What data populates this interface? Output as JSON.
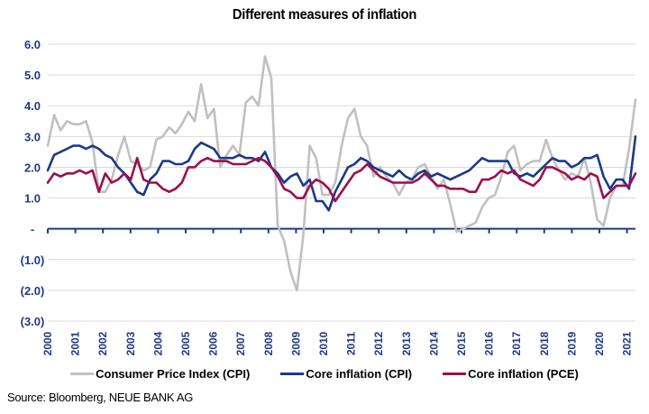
{
  "chart_data": {
    "type": "line",
    "title": "Different measures of inflation",
    "xlabel": "",
    "ylabel": "",
    "ylim": [
      -3.0,
      6.0
    ],
    "xlim": [
      2000,
      2021.25
    ],
    "grid": true,
    "legend_position": "bottom",
    "yticks": [
      {
        "value": 6.0,
        "label": "6.0"
      },
      {
        "value": 5.0,
        "label": "5.0"
      },
      {
        "value": 4.0,
        "label": "4.0"
      },
      {
        "value": 3.0,
        "label": "3.0"
      },
      {
        "value": 2.0,
        "label": "2.0"
      },
      {
        "value": 1.0,
        "label": "1.0"
      },
      {
        "value": 0.0,
        "label": "-"
      },
      {
        "value": -1.0,
        "label": "(1.0)"
      },
      {
        "value": -2.0,
        "label": "(2.0)"
      },
      {
        "value": -3.0,
        "label": "(3.0)"
      }
    ],
    "xticks": [
      "2000",
      "2001",
      "2002",
      "2003",
      "2004",
      "2005",
      "2006",
      "2007",
      "2008",
      "2009",
      "2010",
      "2011",
      "2012",
      "2013",
      "2014",
      "2015",
      "2016",
      "2017",
      "2018",
      "2019",
      "2020",
      "2021"
    ],
    "x_step_years": 0.25,
    "series": [
      {
        "name": "Consumer Price Index (CPI)",
        "color": "#c0c0c0",
        "values": [
          2.7,
          3.7,
          3.2,
          3.5,
          3.4,
          3.4,
          3.5,
          2.8,
          1.2,
          1.2,
          1.6,
          2.4,
          3.0,
          2.2,
          2.1,
          1.9,
          2.0,
          2.9,
          3.0,
          3.3,
          3.1,
          3.4,
          3.8,
          3.5,
          4.7,
          3.6,
          3.9,
          2.0,
          2.4,
          2.7,
          2.4,
          4.1,
          4.3,
          4.0,
          5.6,
          4.9,
          0.1,
          -0.4,
          -1.4,
          -2.0,
          -0.2,
          2.7,
          2.3,
          1.1,
          1.1,
          1.5,
          2.7,
          3.6,
          3.9,
          3.0,
          2.7,
          1.7,
          2.0,
          1.7,
          1.5,
          1.1,
          1.5,
          1.6,
          2.0,
          2.1,
          1.7,
          1.3,
          1.6,
          0.8,
          -0.1,
          0.0,
          0.1,
          0.2,
          0.7,
          1.0,
          1.1,
          1.7,
          2.5,
          2.7,
          1.9,
          2.1,
          2.2,
          2.2,
          2.9,
          2.3,
          1.9,
          1.6,
          1.8,
          1.7,
          2.3,
          1.5,
          0.3,
          0.1,
          1.0,
          1.4,
          1.4,
          2.6,
          4.2
        ]
      },
      {
        "name": "Core inflation (CPI)",
        "color": "#1a3a8a",
        "values": [
          1.9,
          2.4,
          2.5,
          2.6,
          2.7,
          2.7,
          2.6,
          2.7,
          2.6,
          2.4,
          2.3,
          2.0,
          1.8,
          1.5,
          1.2,
          1.1,
          1.6,
          1.8,
          2.2,
          2.2,
          2.1,
          2.1,
          2.2,
          2.6,
          2.8,
          2.7,
          2.6,
          2.3,
          2.3,
          2.3,
          2.4,
          2.3,
          2.3,
          2.2,
          2.5,
          2.0,
          1.8,
          1.5,
          1.7,
          1.8,
          1.4,
          1.6,
          0.9,
          0.9,
          0.6,
          1.2,
          1.6,
          2.0,
          2.1,
          2.3,
          2.2,
          2.0,
          1.9,
          1.8,
          1.7,
          1.9,
          1.7,
          1.6,
          1.8,
          1.9,
          1.7,
          1.8,
          1.7,
          1.6,
          1.7,
          1.8,
          1.9,
          2.1,
          2.3,
          2.2,
          2.2,
          2.2,
          2.2,
          1.8,
          1.7,
          1.8,
          1.7,
          1.9,
          2.1,
          2.3,
          2.2,
          2.2,
          2.0,
          2.1,
          2.3,
          2.3,
          2.4,
          1.7,
          1.3,
          1.6,
          1.6,
          1.3,
          3.0
        ]
      },
      {
        "name": "Core inflation (PCE)",
        "color": "#9c0f4f",
        "values": [
          1.5,
          1.8,
          1.7,
          1.8,
          1.8,
          1.9,
          1.8,
          1.9,
          1.2,
          1.8,
          1.5,
          1.6,
          1.8,
          1.6,
          2.3,
          1.6,
          1.5,
          1.5,
          1.3,
          1.2,
          1.3,
          1.5,
          2.0,
          2.0,
          2.2,
          2.3,
          2.2,
          2.2,
          2.2,
          2.1,
          2.1,
          2.1,
          2.2,
          2.3,
          2.2,
          2.0,
          1.7,
          1.3,
          1.2,
          1.0,
          1.0,
          1.4,
          1.6,
          1.5,
          1.3,
          0.9,
          1.2,
          1.5,
          1.8,
          1.9,
          2.1,
          1.9,
          1.7,
          1.6,
          1.5,
          1.5,
          1.5,
          1.5,
          1.6,
          1.8,
          1.6,
          1.4,
          1.4,
          1.3,
          1.3,
          1.3,
          1.2,
          1.2,
          1.6,
          1.6,
          1.7,
          1.9,
          1.8,
          1.9,
          1.6,
          1.5,
          1.4,
          1.6,
          2.0,
          2.0,
          1.9,
          1.8,
          1.6,
          1.7,
          1.6,
          1.8,
          1.7,
          1.0,
          1.2,
          1.4,
          1.4,
          1.4,
          1.8
        ]
      }
    ]
  },
  "legend": {
    "items": [
      {
        "label": "Consumer Price Index (CPI)",
        "color": "#c0c0c0"
      },
      {
        "label": "Core inflation (CPI)",
        "color": "#1a3a8a"
      },
      {
        "label": "Core inflation (PCE)",
        "color": "#9c0f4f"
      }
    ]
  },
  "source": "Source: Bloomberg, NEUE BANK AG"
}
